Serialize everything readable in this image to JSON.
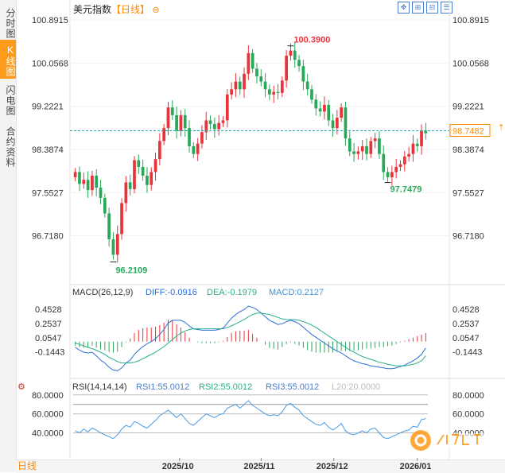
{
  "side_tabs": [
    "分时图",
    "K线图",
    "闪电图",
    "合约资料"
  ],
  "active_tab": 1,
  "main_title": {
    "name": "美元指数",
    "period": "【日线】"
  },
  "period_button": "日线",
  "toolbar": {
    "icons": [
      "move-icon",
      "zoom-in-icon",
      "zoom-out-icon",
      "settings-icon"
    ]
  },
  "colors": {
    "up": "#e8333a",
    "down": "#2aa85a",
    "current_line": "#1aa9a0",
    "macd_dif": "#2c6fd6",
    "macd_dea": "#26b087",
    "rsi": "#4a9be0",
    "current_tag": "#ff8a00",
    "accent": "#ff9b1a"
  },
  "chart_data": [
    {
      "type": "candlestick",
      "title": "美元指数 【日线】",
      "y_ticks": [
        "100.8915",
        "100.0568",
        "99.2221",
        "98.3874",
        "97.5527",
        "96.7180"
      ],
      "ylim": [
        96.05,
        100.97
      ],
      "x_ticks": [
        "2025/10",
        "2025/11",
        "2025/12",
        "2026/01"
      ],
      "current_price": "98.7482",
      "annotations": {
        "high": "100.3900",
        "low": "96.2109",
        "recent_low": "97.7479"
      },
      "closes": [
        97.95,
        97.72,
        97.8,
        97.6,
        97.88,
        97.65,
        97.45,
        97.15,
        96.65,
        96.35,
        96.75,
        97.35,
        97.75,
        97.62,
        98.18,
        98.05,
        97.88,
        97.7,
        97.95,
        98.2,
        98.55,
        98.8,
        99.2,
        99.05,
        98.75,
        99.05,
        98.8,
        98.45,
        98.3,
        98.5,
        98.72,
        98.95,
        98.88,
        98.78,
        98.9,
        98.95,
        99.45,
        99.55,
        99.7,
        99.55,
        99.85,
        100.25,
        99.95,
        99.8,
        99.7,
        99.55,
        99.45,
        99.5,
        99.48,
        99.72,
        100.2,
        100.3,
        100.12,
        100.0,
        99.7,
        99.55,
        99.35,
        99.18,
        99.12,
        99.25,
        98.95,
        98.8,
        99.0,
        99.2,
        98.6,
        98.35,
        98.3,
        98.35,
        98.45,
        98.3,
        98.55,
        98.6,
        98.3,
        97.95,
        97.85,
        97.95,
        98.05,
        98.1,
        98.25,
        98.3,
        98.5,
        98.45,
        98.75,
        98.7
      ],
      "volumes_note": "",
      "macd": {
        "label": "MACD(26,12,9)",
        "dif_label": "DIFF:-0.0916",
        "dea_label": "DEA:-0.1979",
        "macd_label": "MACD:0.2127",
        "y_ticks": [
          "0.4528",
          "0.2537",
          "0.0547",
          "-0.1443"
        ],
        "ylim": [
          -0.45,
          0.6
        ],
        "dif": [
          -0.08,
          -0.12,
          -0.15,
          -0.16,
          -0.15,
          -0.2,
          -0.26,
          -0.3,
          -0.36,
          -0.4,
          -0.41,
          -0.37,
          -0.3,
          -0.26,
          -0.18,
          -0.12,
          -0.07,
          -0.03,
          0.0,
          0.04,
          0.1,
          0.17,
          0.26,
          0.3,
          0.3,
          0.3,
          0.27,
          0.22,
          0.18,
          0.17,
          0.16,
          0.16,
          0.16,
          0.16,
          0.17,
          0.19,
          0.26,
          0.33,
          0.38,
          0.42,
          0.45,
          0.5,
          0.48,
          0.45,
          0.4,
          0.35,
          0.3,
          0.27,
          0.24,
          0.25,
          0.28,
          0.3,
          0.28,
          0.25,
          0.2,
          0.15,
          0.1,
          0.06,
          0.02,
          -0.02,
          -0.06,
          -0.1,
          -0.13,
          -0.16,
          -0.2,
          -0.24,
          -0.27,
          -0.29,
          -0.31,
          -0.32,
          -0.34,
          -0.35,
          -0.36,
          -0.37,
          -0.38,
          -0.38,
          -0.37,
          -0.35,
          -0.33,
          -0.3,
          -0.27,
          -0.23,
          -0.18,
          -0.09
        ],
        "dea": [
          -0.02,
          -0.04,
          -0.06,
          -0.08,
          -0.1,
          -0.12,
          -0.15,
          -0.18,
          -0.22,
          -0.25,
          -0.28,
          -0.3,
          -0.3,
          -0.3,
          -0.29,
          -0.27,
          -0.24,
          -0.21,
          -0.18,
          -0.15,
          -0.11,
          -0.07,
          -0.02,
          0.03,
          0.08,
          0.12,
          0.15,
          0.17,
          0.18,
          0.18,
          0.18,
          0.18,
          0.18,
          0.18,
          0.18,
          0.18,
          0.2,
          0.22,
          0.25,
          0.28,
          0.31,
          0.35,
          0.38,
          0.4,
          0.4,
          0.39,
          0.38,
          0.36,
          0.34,
          0.32,
          0.31,
          0.31,
          0.31,
          0.3,
          0.28,
          0.26,
          0.23,
          0.2,
          0.16,
          0.12,
          0.08,
          0.04,
          0.0,
          -0.04,
          -0.08,
          -0.12,
          -0.15,
          -0.18,
          -0.21,
          -0.23,
          -0.25,
          -0.27,
          -0.29,
          -0.3,
          -0.32,
          -0.33,
          -0.34,
          -0.34,
          -0.34,
          -0.33,
          -0.32,
          -0.3,
          -0.27,
          -0.2
        ],
        "hist": [
          -0.1,
          -0.14,
          -0.16,
          -0.16,
          -0.1,
          -0.15,
          -0.2,
          -0.22,
          -0.26,
          -0.28,
          -0.26,
          -0.14,
          -0.02,
          0.08,
          0.22,
          0.3,
          0.34,
          0.36,
          0.36,
          0.38,
          0.42,
          0.48,
          0.56,
          0.54,
          0.44,
          0.36,
          0.24,
          0.1,
          0.0,
          -0.02,
          -0.04,
          -0.04,
          -0.04,
          -0.04,
          -0.02,
          0.02,
          0.12,
          0.22,
          0.26,
          0.28,
          0.28,
          0.3,
          0.2,
          0.1,
          0.0,
          -0.08,
          -0.16,
          -0.18,
          -0.2,
          -0.14,
          -0.06,
          -0.02,
          -0.06,
          -0.1,
          -0.16,
          -0.22,
          -0.26,
          -0.28,
          -0.28,
          -0.28,
          -0.28,
          -0.28,
          -0.26,
          -0.24,
          -0.24,
          -0.24,
          -0.24,
          -0.22,
          -0.2,
          -0.18,
          -0.18,
          -0.16,
          -0.14,
          -0.14,
          -0.12,
          -0.1,
          -0.06,
          -0.02,
          0.02,
          0.06,
          0.1,
          0.14,
          0.18,
          0.22
        ]
      },
      "rsi": {
        "label": "RSI(14,14,14)",
        "rsi1_label": "RSI1:55.0012",
        "rsi2_label": "RSI2:55.0012",
        "rsi3_label": "RSI3:55.0012",
        "l20_label": "L20:20.0000",
        "y_ticks": [
          "80.0000",
          "60.0000",
          "40.0000"
        ],
        "ylim": [
          22,
          84
        ],
        "values": [
          42,
          40,
          44,
          41,
          45,
          43,
          40,
          38,
          36,
          34,
          38,
          44,
          48,
          46,
          52,
          50,
          47,
          45,
          49,
          53,
          58,
          61,
          64,
          60,
          56,
          60,
          55,
          50,
          48,
          52,
          56,
          60,
          58,
          56,
          59,
          60,
          66,
          68,
          70,
          66,
          70,
          74,
          69,
          66,
          63,
          60,
          58,
          59,
          58,
          62,
          69,
          71,
          67,
          64,
          58,
          55,
          52,
          49,
          48,
          51,
          46,
          43,
          46,
          50,
          42,
          39,
          38,
          40,
          42,
          40,
          44,
          45,
          40,
          35,
          34,
          36,
          38,
          40,
          42,
          43,
          47,
          46,
          54,
          55
        ]
      }
    }
  ]
}
